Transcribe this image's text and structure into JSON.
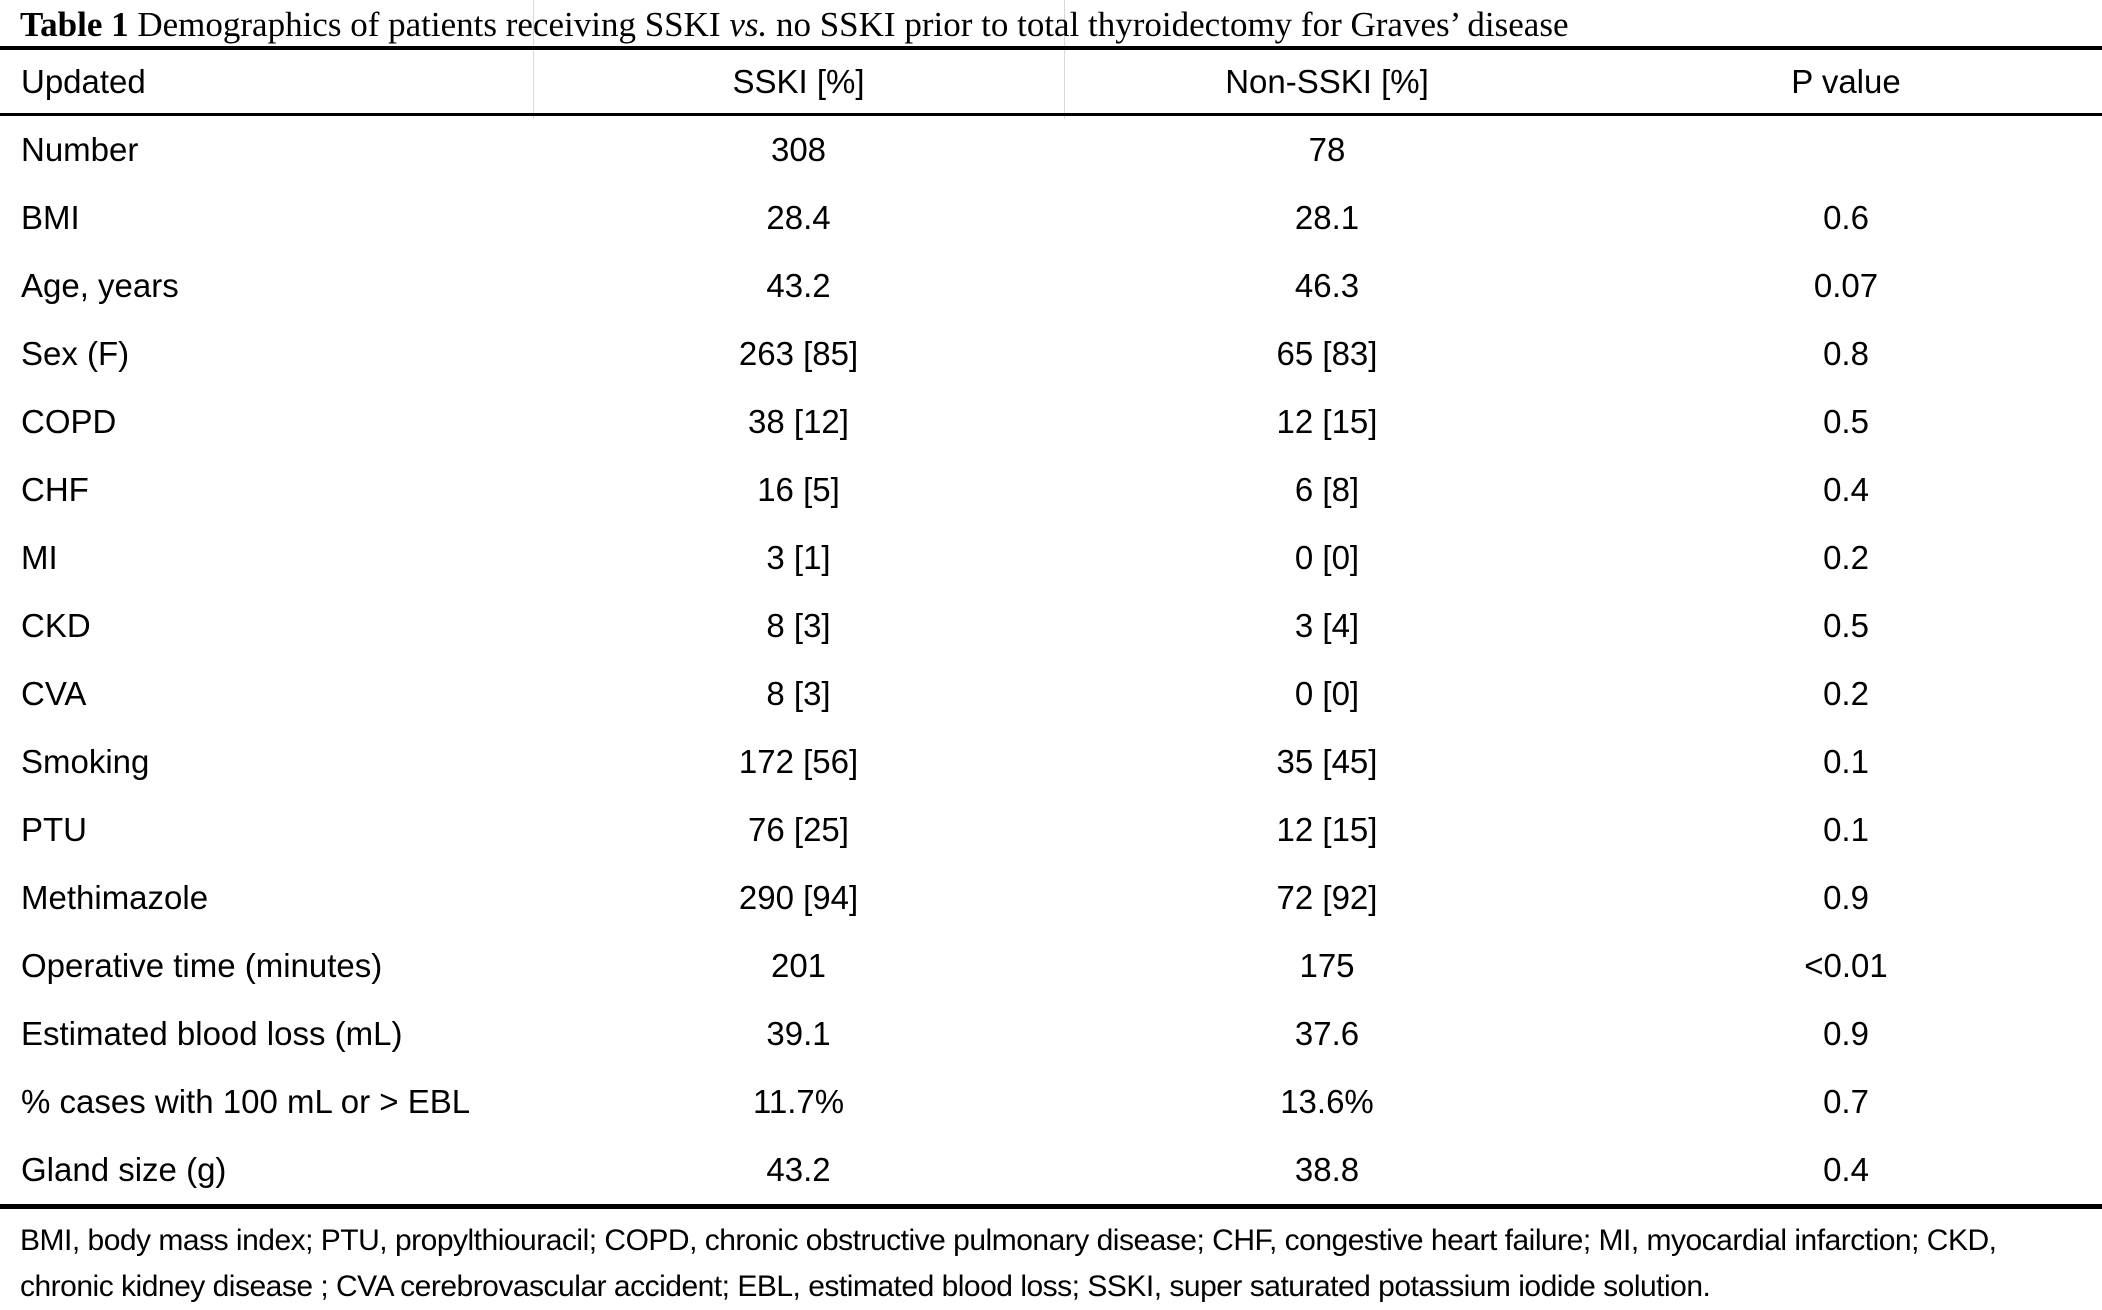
{
  "page": {
    "background": "#ffffff",
    "text_color": "#000000",
    "rule_color": "#000000"
  },
  "table": {
    "title": {
      "label": "Table 1",
      "pre": " Demographics of patients receiving SSKI ",
      "vs": "vs.",
      "post": " no SSKI prior to total thyroidectomy for Graves’ disease"
    },
    "columns": [
      "Updated",
      "SSKI [%]",
      "Non-SSKI [%]",
      "P value"
    ],
    "rows": [
      {
        "label": "Number",
        "sski": "308",
        "non_sski": "78",
        "p": ""
      },
      {
        "label": "BMI",
        "sski": "28.4",
        "non_sski": "28.1",
        "p": "0.6"
      },
      {
        "label": "Age, years",
        "sski": "43.2",
        "non_sski": "46.3",
        "p": "0.07"
      },
      {
        "label": "Sex (F)",
        "sski": "263 [85]",
        "non_sski": "65 [83]",
        "p": "0.8"
      },
      {
        "label": "COPD",
        "sski": "38 [12]",
        "non_sski": "12 [15]",
        "p": "0.5"
      },
      {
        "label": "CHF",
        "sski": "16 [5]",
        "non_sski": "6 [8]",
        "p": "0.4"
      },
      {
        "label": "MI",
        "sski": "3 [1]",
        "non_sski": "0 [0]",
        "p": "0.2"
      },
      {
        "label": "CKD",
        "sski": "8 [3]",
        "non_sski": "3 [4]",
        "p": "0.5"
      },
      {
        "label": "CVA",
        "sski": "8 [3]",
        "non_sski": "0 [0]",
        "p": "0.2"
      },
      {
        "label": "Smoking",
        "sski": "172 [56]",
        "non_sski": "35 [45]",
        "p": "0.1"
      },
      {
        "label": "PTU",
        "sski": "76 [25]",
        "non_sski": "12 [15]",
        "p": "0.1"
      },
      {
        "label": "Methimazole",
        "sski": "290 [94]",
        "non_sski": "72 [92]",
        "p": "0.9"
      },
      {
        "label": "Operative time (minutes)",
        "sski": "201",
        "non_sski": "175",
        "p": "<0.01"
      },
      {
        "label": "Estimated blood loss (mL)",
        "sski": "39.1",
        "non_sski": "37.6",
        "p": "0.9"
      },
      {
        "label": "% cases with 100 mL or > EBL",
        "sski": "11.7%",
        "non_sski": "13.6%",
        "p": "0.7"
      },
      {
        "label": "Gland size (g)",
        "sski": "43.2",
        "non_sski": "38.8",
        "p": "0.4"
      }
    ],
    "footnote": "BMI, body mass index; PTU, propylthiouracil; COPD, chronic obstructive pulmonary disease; CHF, congestive heart failure; MI, myocardial infarction; CKD, chronic kidney disease ; CVA cerebrovascular accident; EBL, estimated blood loss; SSKI, super saturated potassium iodide solution."
  }
}
